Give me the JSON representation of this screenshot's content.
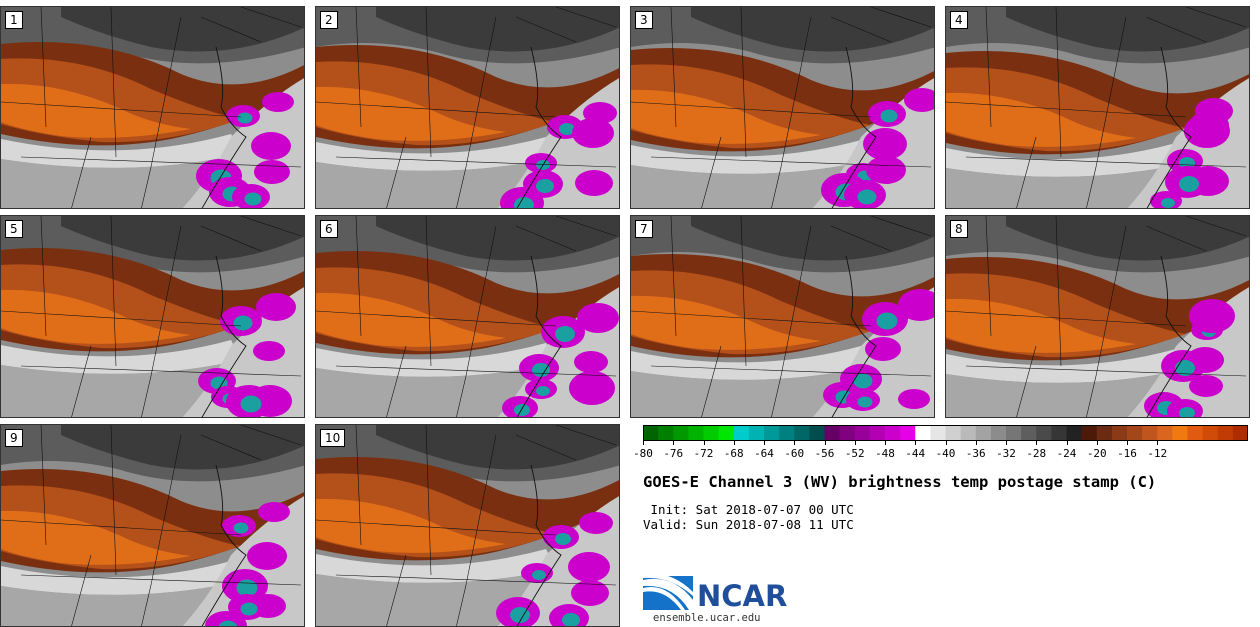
{
  "panels": [
    {
      "label": "1"
    },
    {
      "label": "2"
    },
    {
      "label": "3"
    },
    {
      "label": "4"
    },
    {
      "label": "5"
    },
    {
      "label": "6"
    },
    {
      "label": "7"
    },
    {
      "label": "8"
    },
    {
      "label": "9"
    },
    {
      "label": "10"
    }
  ],
  "colorbar": {
    "ticks": [
      "-80",
      "-76",
      "-72",
      "-68",
      "-64",
      "-60",
      "-56",
      "-52",
      "-48",
      "-44",
      "-40",
      "-36",
      "-32",
      "-28",
      "-24",
      "-20",
      "-16",
      "-12"
    ],
    "bins": [
      "#006400",
      "#007f00",
      "#009900",
      "#00b300",
      "#00cc00",
      "#00e600",
      "#00cccc",
      "#00b3b3",
      "#009999",
      "#008080",
      "#006666",
      "#004d4d",
      "#660066",
      "#800080",
      "#990099",
      "#b300b3",
      "#cc00cc",
      "#e600e6",
      "#ffffff",
      "#e6e6e6",
      "#d0d0d0",
      "#bababa",
      "#a3a3a3",
      "#8c8c8c",
      "#767676",
      "#5e5e5e",
      "#4a4a4a",
      "#363636",
      "#222222",
      "#4d1a0a",
      "#6b2a12",
      "#8a3a16",
      "#a3471a",
      "#c0561e",
      "#d9651e",
      "#f07a10",
      "#e05a10",
      "#d04a08",
      "#c03c04",
      "#b02c00"
    ]
  },
  "title": "GOES-E Channel 3 (WV) brightness temp postage stamp (C)",
  "init": " Init: Sat 2018-07-07 00 UTC",
  "valid": "Valid: Sun 2018-07-08 11 UTC",
  "logo": {
    "text": "NCAR",
    "url": "ensemble.ucar.edu"
  }
}
